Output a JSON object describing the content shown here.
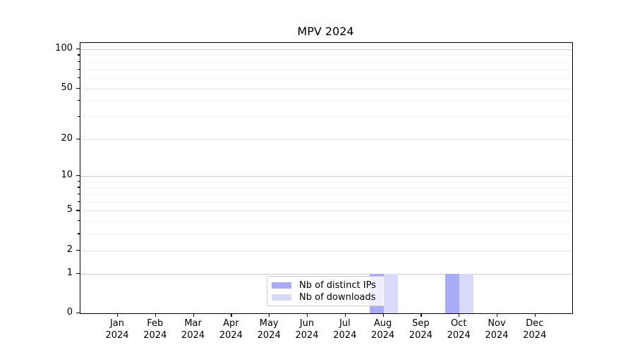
{
  "chart_data": {
    "type": "bar",
    "title": "MPV 2024",
    "x": {
      "categories": [
        "Jan",
        "Feb",
        "Mar",
        "Apr",
        "May",
        "Jun",
        "Jul",
        "Aug",
        "Sep",
        "Oct",
        "Nov",
        "Dec"
      ],
      "year": "2024"
    },
    "y": {
      "scale": "log10(value+1)",
      "major_ticks": [
        0,
        1,
        2,
        5,
        10,
        20,
        50,
        100
      ],
      "decade_ticks": [
        1,
        10,
        100
      ],
      "minor_ticks": [
        3,
        4,
        6,
        7,
        8,
        9,
        30,
        40,
        60,
        70,
        80,
        90
      ],
      "range": [
        0,
        100
      ]
    },
    "series": [
      {
        "name": "Nb of distinct IPs",
        "color": "#aaabf7",
        "values": [
          0,
          0,
          0,
          0,
          0,
          0,
          0,
          1,
          0,
          1,
          0,
          0
        ]
      },
      {
        "name": "Nb of downloads",
        "color": "#d9dafa",
        "values": [
          0,
          0,
          0,
          0,
          0,
          0,
          0,
          1,
          0,
          1,
          0,
          0
        ]
      }
    ],
    "legend": {
      "entries": [
        "Nb of distinct IPs",
        "Nb of downloads"
      ],
      "position": "lower center"
    },
    "grid": true
  }
}
